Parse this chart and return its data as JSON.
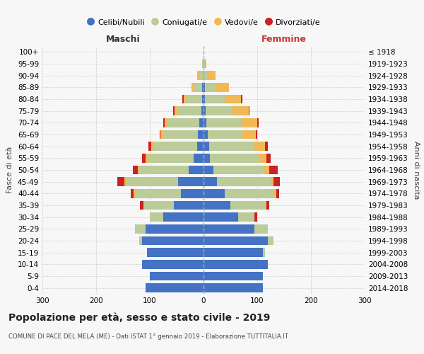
{
  "age_groups": [
    "0-4",
    "5-9",
    "10-14",
    "15-19",
    "20-24",
    "25-29",
    "30-34",
    "35-39",
    "40-44",
    "45-49",
    "50-54",
    "55-59",
    "60-64",
    "65-69",
    "70-74",
    "75-79",
    "80-84",
    "85-89",
    "90-94",
    "95-99",
    "100+"
  ],
  "birth_years": [
    "2014-2018",
    "2009-2013",
    "2004-2008",
    "1999-2003",
    "1994-1998",
    "1989-1993",
    "1984-1988",
    "1979-1983",
    "1974-1978",
    "1969-1973",
    "1964-1968",
    "1959-1963",
    "1954-1958",
    "1949-1953",
    "1944-1948",
    "1939-1943",
    "1934-1938",
    "1929-1933",
    "1924-1928",
    "1919-1923",
    "≤ 1918"
  ],
  "male": {
    "celibi": [
      108,
      100,
      115,
      105,
      115,
      108,
      75,
      55,
      42,
      48,
      28,
      18,
      12,
      10,
      8,
      4,
      2,
      2,
      0,
      0,
      0
    ],
    "coniugati": [
      0,
      0,
      0,
      0,
      5,
      18,
      25,
      55,
      85,
      95,
      90,
      85,
      80,
      65,
      60,
      45,
      30,
      15,
      6,
      2,
      0
    ],
    "vedovi": [
      0,
      0,
      0,
      0,
      0,
      2,
      0,
      2,
      3,
      5,
      5,
      5,
      5,
      5,
      5,
      5,
      5,
      5,
      6,
      0,
      0
    ],
    "divorziati": [
      0,
      0,
      0,
      0,
      0,
      0,
      0,
      6,
      5,
      12,
      8,
      6,
      5,
      2,
      2,
      2,
      2,
      0,
      0,
      0,
      0
    ]
  },
  "female": {
    "nubili": [
      110,
      110,
      120,
      110,
      120,
      95,
      65,
      50,
      40,
      25,
      18,
      12,
      10,
      8,
      5,
      4,
      2,
      2,
      0,
      0,
      0
    ],
    "coniugate": [
      0,
      0,
      0,
      5,
      10,
      25,
      30,
      65,
      90,
      100,
      95,
      90,
      85,
      65,
      65,
      50,
      38,
      20,
      8,
      2,
      0
    ],
    "vedove": [
      0,
      0,
      0,
      0,
      0,
      0,
      0,
      2,
      5,
      5,
      10,
      15,
      20,
      25,
      30,
      30,
      30,
      25,
      15,
      3,
      0
    ],
    "divorziate": [
      0,
      0,
      0,
      0,
      0,
      0,
      5,
      5,
      6,
      12,
      15,
      8,
      5,
      2,
      2,
      2,
      2,
      0,
      0,
      0,
      0
    ]
  },
  "colors": {
    "celibi_nubili": "#4472C4",
    "coniugati_e": "#BBCC99",
    "vedovi_e": "#F0B955",
    "divorziati_e": "#CC2222"
  },
  "title": "Popolazione per età, sesso e stato civile - 2019",
  "subtitle": "COMUNE DI PACE DEL MELA (ME) - Dati ISTAT 1° gennaio 2019 - Elaborazione TUTTITALIA.IT",
  "xlabel_left": "Maschi",
  "xlabel_right": "Femmine",
  "ylabel_left": "Fasce di età",
  "ylabel_right": "Anni di nascita",
  "xlim": 300,
  "legend_labels": [
    "Celibi/Nubili",
    "Coniugati/e",
    "Vedovi/e",
    "Divorziati/e"
  ],
  "background_color": "#f7f7f7",
  "grid_color": "#cccccc"
}
